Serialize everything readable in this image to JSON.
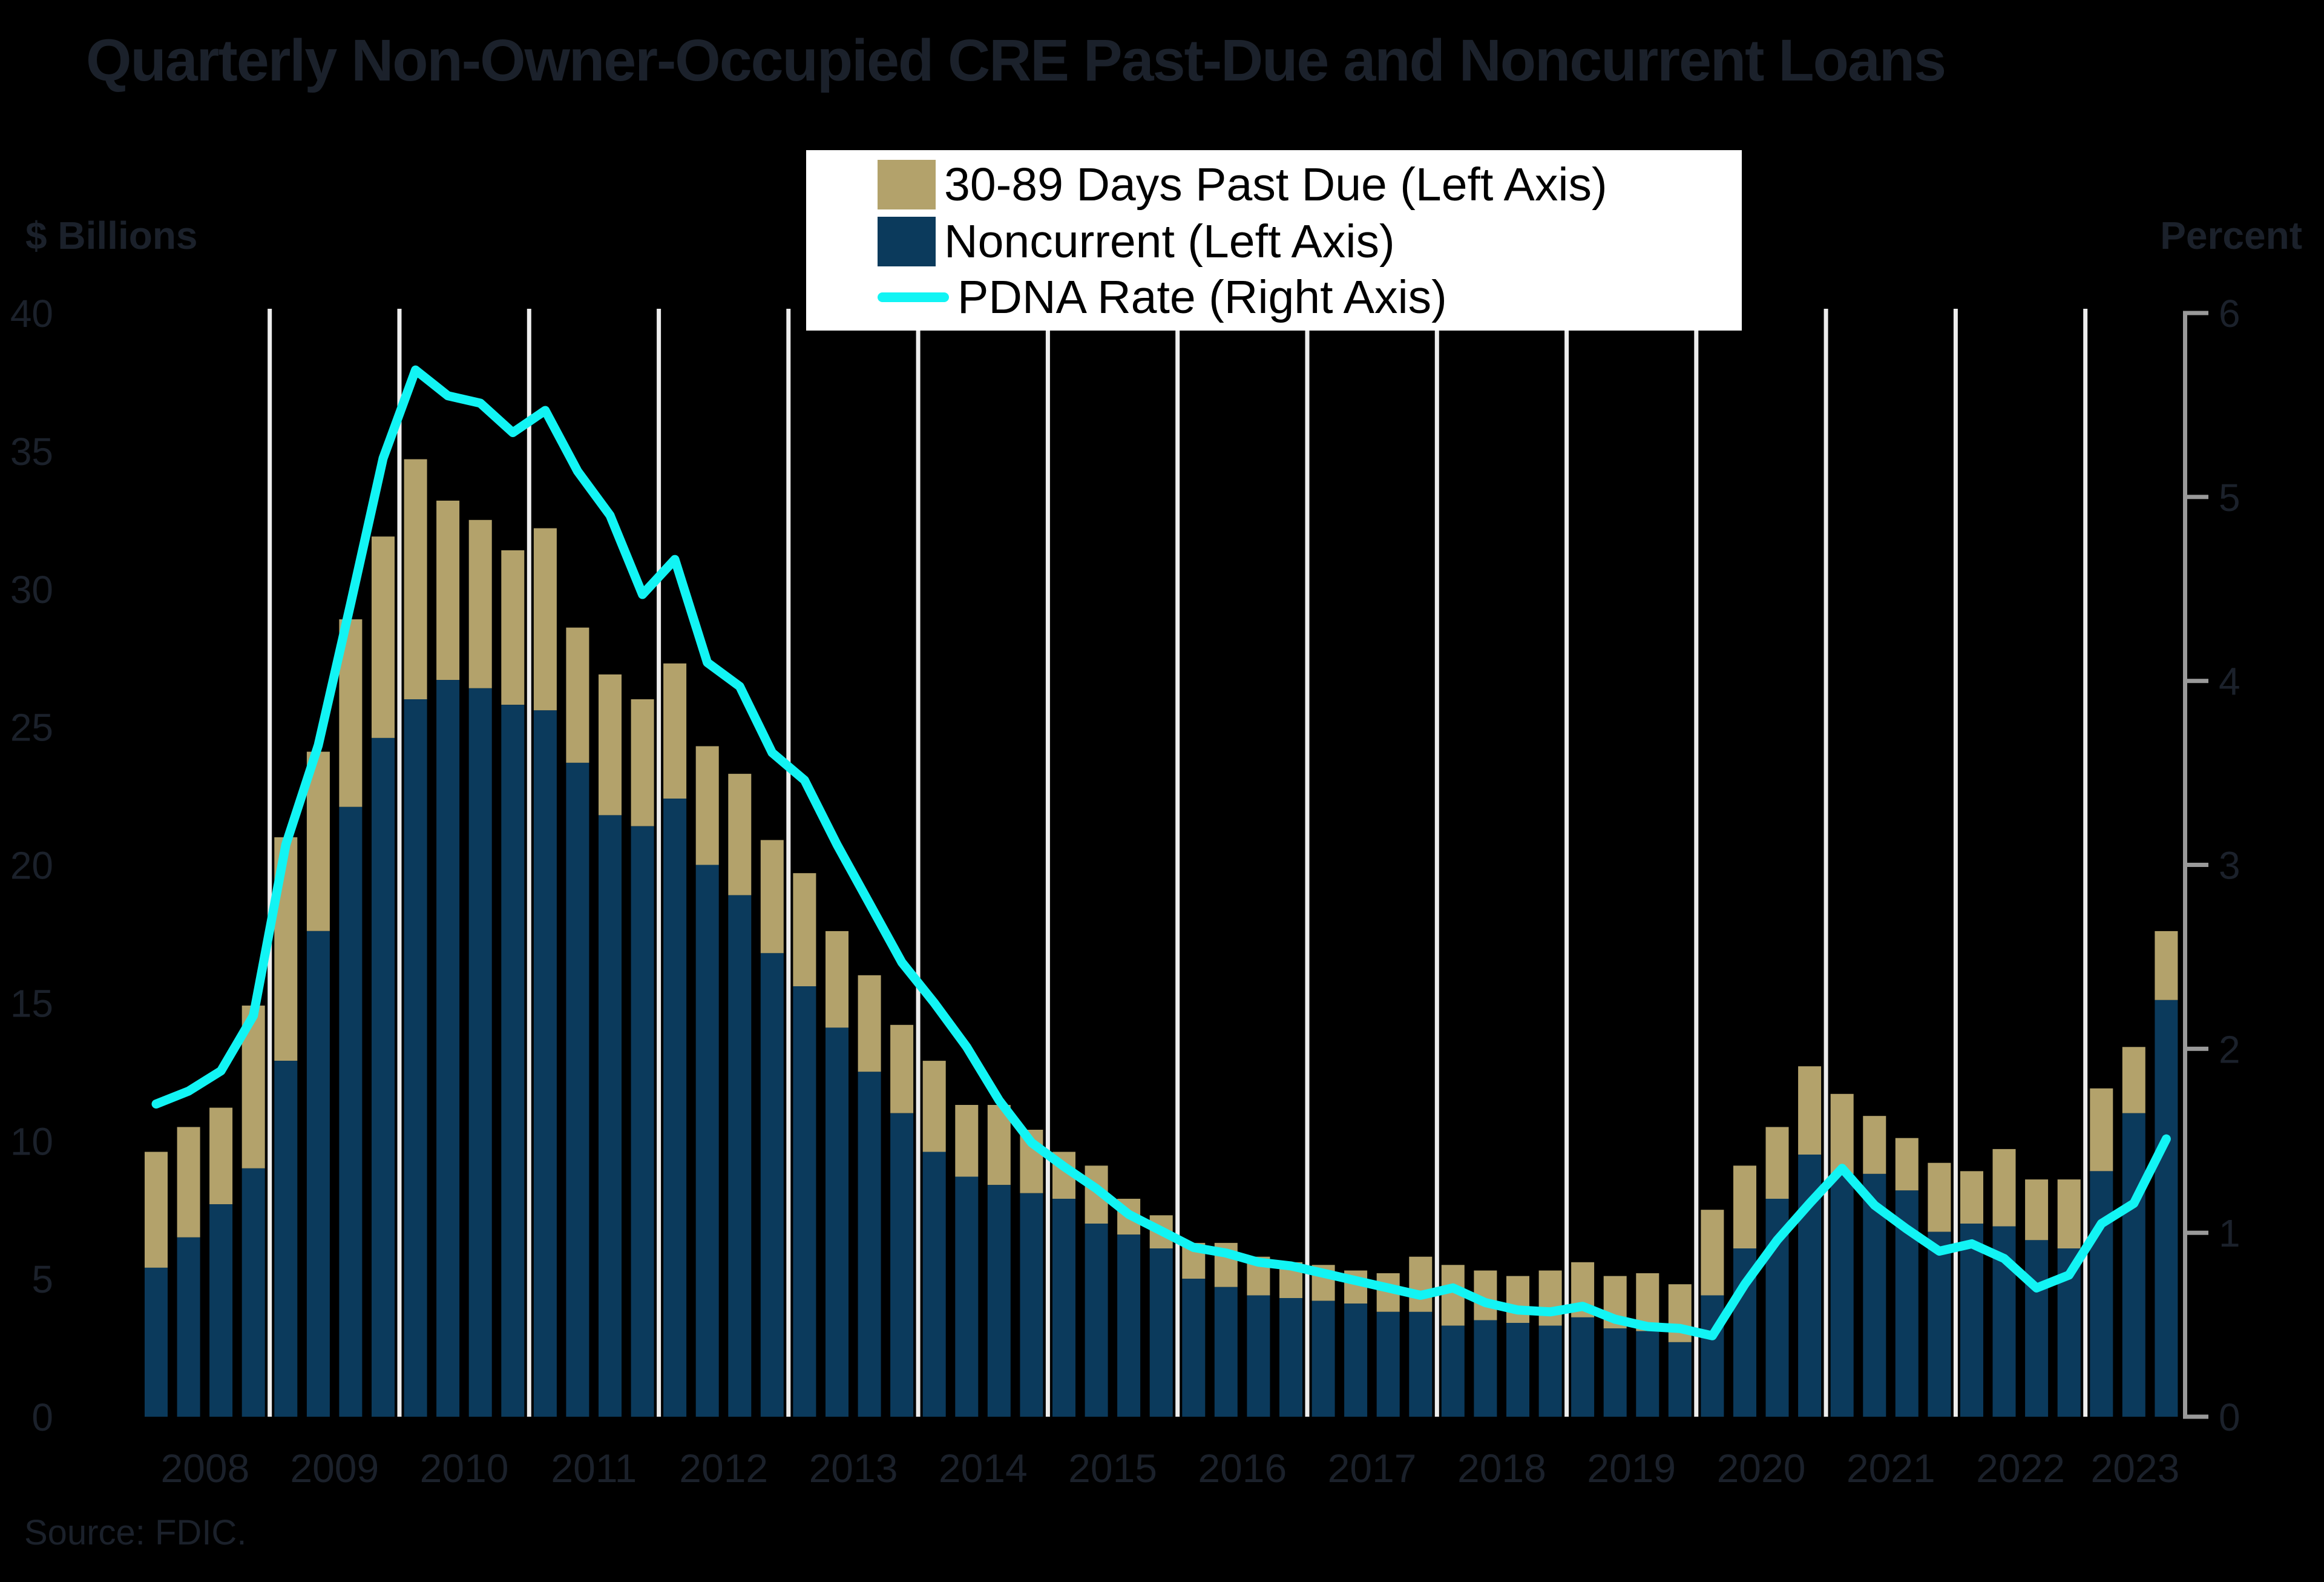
{
  "title": "Quarterly Non-Owner-Occupied CRE Past-Due and Noncurrent Loans",
  "source": "Source: FDIC.",
  "colors": {
    "background": "#000000",
    "past_due_bar": "#b3a26b",
    "noncurrent_bar": "#0b3a5c",
    "pdna_line": "#12f4f4",
    "gridline": "#ededed",
    "right_axis_spine": "#9a9a9a",
    "dark_text": "#1b212b",
    "legend_background": "#ffffff",
    "legend_text": "#000000"
  },
  "chart_data": {
    "type": "bar",
    "subtype": "stacked-bars-with-line-overlay",
    "title": "Quarterly Non-Owner-Occupied CRE Past-Due and Noncurrent Loans",
    "source": "Source: FDIC.",
    "left_axis": {
      "label": "$ Billions",
      "ticks": [
        0,
        5,
        10,
        15,
        20,
        25,
        30,
        35,
        40
      ],
      "range": [
        0,
        40
      ]
    },
    "right_axis": {
      "label": "Percent",
      "ticks": [
        0,
        1,
        2,
        3,
        4,
        5,
        6
      ],
      "range": [
        0,
        6
      ]
    },
    "grid": "vertical-white-lines-between-years",
    "legend_position": "top-center",
    "years": [
      2008,
      2009,
      2010,
      2011,
      2012,
      2013,
      2014,
      2015,
      2016,
      2017,
      2018,
      2019,
      2020,
      2021,
      2022,
      2023
    ],
    "categories": [
      "2008 Q1",
      "2008 Q2",
      "2008 Q3",
      "2008 Q4",
      "2009 Q1",
      "2009 Q2",
      "2009 Q3",
      "2009 Q4",
      "2010 Q1",
      "2010 Q2",
      "2010 Q3",
      "2010 Q4",
      "2011 Q1",
      "2011 Q2",
      "2011 Q3",
      "2011 Q4",
      "2012 Q1",
      "2012 Q2",
      "2012 Q3",
      "2012 Q4",
      "2013 Q1",
      "2013 Q2",
      "2013 Q3",
      "2013 Q4",
      "2014 Q1",
      "2014 Q2",
      "2014 Q3",
      "2014 Q4",
      "2015 Q1",
      "2015 Q2",
      "2015 Q3",
      "2015 Q4",
      "2016 Q1",
      "2016 Q2",
      "2016 Q3",
      "2016 Q4",
      "2017 Q1",
      "2017 Q2",
      "2017 Q3",
      "2017 Q4",
      "2018 Q1",
      "2018 Q2",
      "2018 Q3",
      "2018 Q4",
      "2019 Q1",
      "2019 Q2",
      "2019 Q3",
      "2019 Q4",
      "2020 Q1",
      "2020 Q2",
      "2020 Q3",
      "2020 Q4",
      "2021 Q1",
      "2021 Q2",
      "2021 Q3",
      "2021 Q4",
      "2022 Q1",
      "2022 Q2",
      "2022 Q3",
      "2022 Q4",
      "2023 Q1",
      "2023 Q2",
      "2023 Q3"
    ],
    "series": [
      {
        "name": "30-89 Days Past Due (Left Axis)",
        "type": "bar",
        "axis": "left",
        "stack_position": "top",
        "color": "#b3a26b",
        "values": [
          4.2,
          4.0,
          3.5,
          5.9,
          8.1,
          6.5,
          6.8,
          7.3,
          8.7,
          6.5,
          6.1,
          5.6,
          6.6,
          4.9,
          5.1,
          4.6,
          4.9,
          4.3,
          4.4,
          4.1,
          4.1,
          3.5,
          3.5,
          3.2,
          3.3,
          2.6,
          2.9,
          2.3,
          1.7,
          2.1,
          1.3,
          1.2,
          1.3,
          1.6,
          1.4,
          1.3,
          1.3,
          1.2,
          1.4,
          2.0,
          2.2,
          1.8,
          1.7,
          2.0,
          2.0,
          1.9,
          2.1,
          2.1,
          3.1,
          3.0,
          2.6,
          3.2,
          2.9,
          2.1,
          1.9,
          2.5,
          1.9,
          2.8,
          2.2,
          2.5,
          3.0,
          2.4,
          2.5
        ]
      },
      {
        "name": "Noncurrent (Left Axis)",
        "type": "bar",
        "axis": "left",
        "stack_position": "bottom",
        "color": "#0b3a5c",
        "values": [
          5.4,
          6.5,
          7.7,
          9.0,
          12.9,
          17.6,
          22.1,
          24.6,
          26.0,
          26.7,
          26.4,
          25.8,
          25.6,
          23.7,
          21.8,
          21.4,
          22.4,
          20.0,
          18.9,
          16.8,
          15.6,
          14.1,
          12.5,
          11.0,
          9.6,
          8.7,
          8.4,
          8.1,
          7.9,
          7.0,
          6.6,
          6.1,
          5.0,
          4.7,
          4.4,
          4.3,
          4.2,
          4.1,
          3.8,
          3.8,
          3.3,
          3.5,
          3.4,
          3.3,
          3.6,
          3.2,
          3.1,
          2.7,
          4.4,
          6.1,
          7.9,
          9.5,
          8.8,
          8.8,
          8.2,
          6.7,
          7.0,
          6.9,
          6.4,
          6.1,
          8.9,
          11.0,
          15.1
        ]
      },
      {
        "name": "PDNA Rate (Right Axis)",
        "type": "line",
        "axis": "right",
        "color": "#12f4f4",
        "values": [
          1.7,
          1.77,
          1.88,
          2.18,
          3.11,
          3.65,
          4.42,
          5.21,
          5.69,
          5.55,
          5.51,
          5.35,
          5.47,
          5.14,
          4.9,
          4.47,
          4.66,
          4.1,
          3.97,
          3.61,
          3.46,
          3.11,
          2.79,
          2.47,
          2.25,
          2.01,
          1.72,
          1.49,
          1.36,
          1.24,
          1.1,
          1.01,
          0.92,
          0.89,
          0.84,
          0.82,
          0.78,
          0.74,
          0.7,
          0.66,
          0.7,
          0.62,
          0.58,
          0.57,
          0.6,
          0.53,
          0.49,
          0.48,
          0.44,
          0.72,
          0.96,
          1.16,
          1.35,
          1.15,
          1.02,
          0.9,
          0.94,
          0.86,
          0.7,
          0.77,
          1.05,
          1.16,
          1.51
        ]
      }
    ]
  },
  "legend": {
    "items": [
      {
        "label": "30-89 Days Past Due (Left Axis)",
        "marker": "square",
        "color": "#b3a26b"
      },
      {
        "label": "Noncurrent (Left Axis)",
        "marker": "square",
        "color": "#0b3a5c"
      },
      {
        "label": "PDNA Rate (Right Axis)",
        "marker": "line",
        "color": "#12f4f4"
      }
    ]
  }
}
